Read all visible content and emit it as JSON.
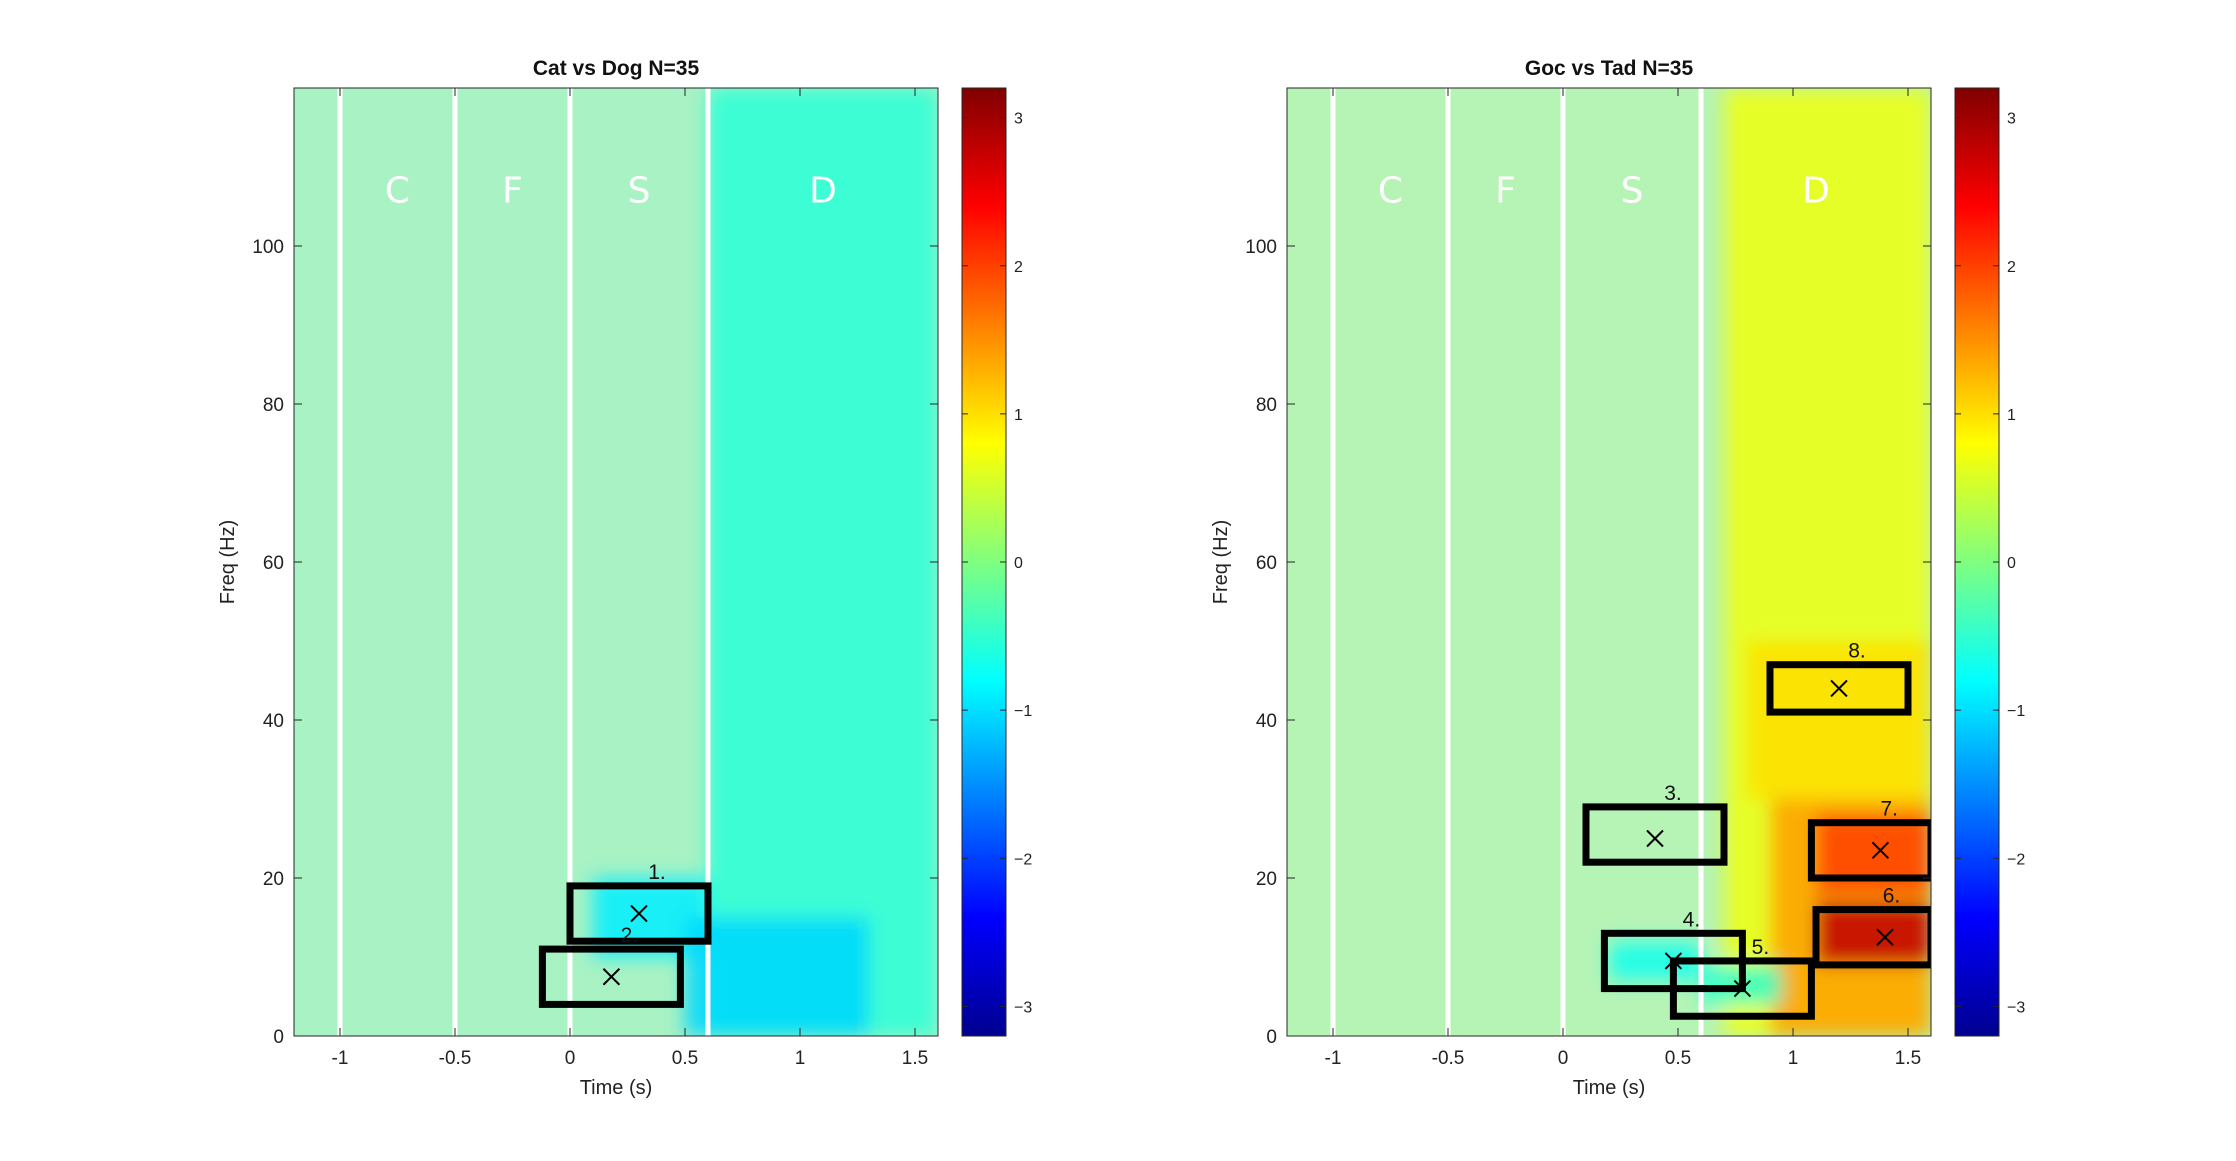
{
  "chart_data": [
    {
      "type": "heatmap",
      "title": "Cat vs Dog N=35",
      "xlabel": "Time (s)",
      "ylabel": "Freq (Hz)",
      "xlim": [
        -1.2,
        1.6
      ],
      "ylim": [
        0,
        120
      ],
      "xticks": [
        -1,
        -0.5,
        0,
        0.5,
        1,
        1.5
      ],
      "xtick_labels": [
        "-1",
        "-0.5",
        "0",
        "0.5",
        "1",
        "1.5"
      ],
      "yticks": [
        0,
        20,
        40,
        60,
        80,
        100
      ],
      "ytick_labels": [
        "0",
        "20",
        "40",
        "60",
        "80",
        "100"
      ],
      "colorbar": {
        "min": -3.2,
        "max": 3.2,
        "ticks": [
          3,
          2,
          1,
          0,
          -1,
          -2,
          -3
        ],
        "tick_labels": [
          "3",
          "2",
          "1",
          "0",
          "−1",
          "−2",
          "−3"
        ]
      },
      "epoch_lines": [
        -1,
        -0.5,
        0,
        0.6
      ],
      "epochs": [
        {
          "label": "C",
          "x": -0.75
        },
        {
          "label": "F",
          "x": -0.25
        },
        {
          "label": "S",
          "x": 0.3
        },
        {
          "label": "D",
          "x": 1.1
        }
      ],
      "epoch_label_y": 107,
      "boxes": [
        {
          "label": "1.",
          "t0": 0.0,
          "t1": 0.6,
          "f0": 12,
          "f1": 19,
          "peak": [
            0.3,
            15.5
          ]
        },
        {
          "label": "2.",
          "t0": -0.12,
          "t1": 0.48,
          "f0": 4,
          "f1": 11,
          "peak": [
            0.18,
            7.5
          ]
        }
      ],
      "regions": [
        {
          "t0": 0.6,
          "t1": 1.6,
          "f0": 0,
          "f1": 120,
          "value": -0.55
        },
        {
          "t0": 0.1,
          "t1": 0.6,
          "f0": 10,
          "f1": 20,
          "value": -0.9
        },
        {
          "t0": 0.5,
          "t1": 1.3,
          "f0": 0,
          "f1": 15,
          "value": -1.05
        }
      ]
    },
    {
      "type": "heatmap",
      "title": "Goc vs Tad N=35",
      "xlabel": "Time (s)",
      "ylabel": "Freq (Hz)",
      "xlim": [
        -1.2,
        1.6
      ],
      "ylim": [
        0,
        120
      ],
      "xticks": [
        -1,
        -0.5,
        0,
        0.5,
        1,
        1.5
      ],
      "xtick_labels": [
        "-1",
        "-0.5",
        "0",
        "0.5",
        "1",
        "1.5"
      ],
      "yticks": [
        0,
        20,
        40,
        60,
        80,
        100
      ],
      "ytick_labels": [
        "0",
        "20",
        "40",
        "60",
        "80",
        "100"
      ],
      "colorbar": {
        "min": -3.2,
        "max": 3.2,
        "ticks": [
          3,
          2,
          1,
          0,
          -1,
          -2,
          -3
        ],
        "tick_labels": [
          "3",
          "2",
          "1",
          "0",
          "−1",
          "−2",
          "−3"
        ]
      },
      "epoch_lines": [
        -1,
        -0.5,
        0,
        0.6
      ],
      "epochs": [
        {
          "label": "C",
          "x": -0.75
        },
        {
          "label": "F",
          "x": -0.25
        },
        {
          "label": "S",
          "x": 0.3
        },
        {
          "label": "D",
          "x": 1.1
        }
      ],
      "epoch_label_y": 107,
      "boxes": [
        {
          "label": "3.",
          "t0": 0.1,
          "t1": 0.7,
          "f0": 22,
          "f1": 29,
          "peak": [
            0.4,
            25
          ]
        },
        {
          "label": "4.",
          "t0": 0.18,
          "t1": 0.78,
          "f0": 6,
          "f1": 13,
          "peak": [
            0.48,
            9.5
          ]
        },
        {
          "label": "5.",
          "t0": 0.48,
          "t1": 1.08,
          "f0": 2.5,
          "f1": 9.5,
          "peak": [
            0.78,
            6
          ]
        },
        {
          "label": "6.",
          "t0": 1.1,
          "t1": 1.6,
          "f0": 9,
          "f1": 16,
          "peak": [
            1.4,
            12.5
          ]
        },
        {
          "label": "7.",
          "t0": 1.08,
          "t1": 1.6,
          "f0": 20,
          "f1": 27,
          "peak": [
            1.38,
            23.5
          ]
        },
        {
          "label": "8.",
          "t0": 0.9,
          "t1": 1.5,
          "f0": 41,
          "f1": 47,
          "peak": [
            1.2,
            44
          ]
        }
      ],
      "regions": [
        {
          "t0": 0.7,
          "t1": 1.6,
          "f0": 0,
          "f1": 120,
          "value": 0.7
        },
        {
          "t0": 0.8,
          "t1": 1.6,
          "f0": 30,
          "f1": 50,
          "value": 1.0
        },
        {
          "t0": 0.9,
          "t1": 1.6,
          "f0": 0,
          "f1": 30,
          "value": 1.4
        },
        {
          "t0": 1.1,
          "t1": 1.6,
          "f0": 18,
          "f1": 28,
          "value": 2.0
        },
        {
          "t0": 1.1,
          "t1": 1.6,
          "f0": 9,
          "f1": 17,
          "value": 2.8
        },
        {
          "t0": 0.2,
          "t1": 0.6,
          "f0": 7,
          "f1": 12,
          "value": -0.7
        },
        {
          "t0": 0.6,
          "t1": 0.95,
          "f0": 4,
          "f1": 9,
          "value": -0.5
        }
      ]
    }
  ]
}
